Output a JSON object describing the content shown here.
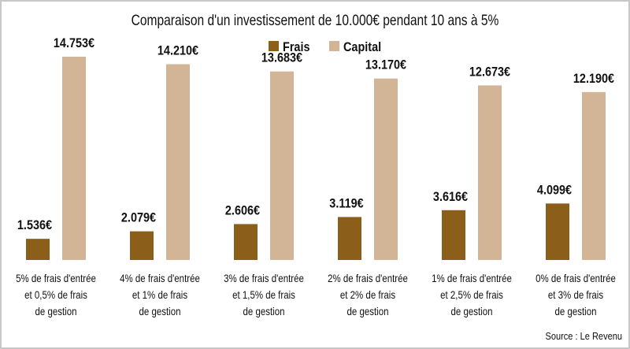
{
  "chart_data": {
    "type": "bar",
    "title": "Comparaison d'un investissement de 10.000€ pendant 10 ans à 5%",
    "categories": [
      [
        "5% de frais d'entrée",
        "et 0,5% de frais",
        "de gestion"
      ],
      [
        "4% de frais d'entrée",
        "et 1% de frais",
        "de gestion"
      ],
      [
        "3% de frais d'entrée",
        "et 1,5% de frais",
        "de gestion"
      ],
      [
        "2% de frais d'entrée",
        "et 2% de frais",
        "de gestion"
      ],
      [
        "1% de frais d'entrée",
        "et 2,5% de frais",
        "de gestion"
      ],
      [
        "0% de frais d'entrée",
        "et 3% de frais",
        "de gestion"
      ]
    ],
    "series": [
      {
        "name": "Frais",
        "color": "#8b5e1a",
        "values": [
          1536,
          2079,
          2606,
          3119,
          3616,
          4099
        ],
        "labels": [
          "1.536€",
          "2.079€",
          "2.606€",
          "3.119€",
          "3.616€",
          "4.099€"
        ]
      },
      {
        "name": "Capital",
        "color": "#d2b596",
        "values": [
          14753,
          14210,
          13683,
          13170,
          12673,
          12190
        ],
        "labels": [
          "14.753€",
          "14.210€",
          "13.683€",
          "13.170€",
          "12.673€",
          "12.190€"
        ]
      }
    ],
    "ylim": [
      0,
      14753
    ],
    "grid": false,
    "legend": "top-center",
    "source": "Source : Le Revenu"
  }
}
